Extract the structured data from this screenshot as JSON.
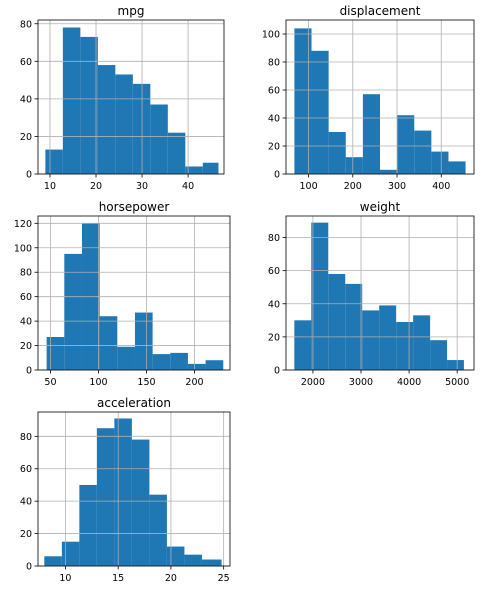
{
  "chart_data": [
    {
      "type": "bar",
      "title": "mpg",
      "xlim": [
        7.4,
        47.8
      ],
      "ylim": [
        0,
        82
      ],
      "xticks": [
        10,
        20,
        30,
        40
      ],
      "yticks": [
        0,
        20,
        40,
        60,
        80
      ],
      "bin_edges": [
        9.0,
        12.8,
        16.6,
        20.4,
        24.2,
        28.0,
        31.8,
        35.6,
        39.4,
        43.2,
        46.6
      ],
      "values": [
        13,
        78,
        73,
        58,
        53,
        48,
        37,
        22,
        4,
        6
      ]
    },
    {
      "type": "bar",
      "title": "displacement",
      "xlim": [
        49,
        474
      ],
      "ylim": [
        0,
        110
      ],
      "xticks": [
        100,
        200,
        300,
        400
      ],
      "yticks": [
        0,
        20,
        40,
        60,
        80,
        100
      ],
      "bin_edges": [
        68,
        106.7,
        145.4,
        184.1,
        222.8,
        261.5,
        300.2,
        338.9,
        377.6,
        416.3,
        455
      ],
      "values": [
        104,
        88,
        30,
        12,
        57,
        3,
        42,
        31,
        16,
        9
      ]
    },
    {
      "type": "bar",
      "title": "horsepower",
      "xlim": [
        37,
        237
      ],
      "ylim": [
        0,
        126
      ],
      "xticks": [
        50,
        100,
        150,
        200
      ],
      "yticks": [
        0,
        20,
        40,
        60,
        80,
        100,
        120
      ],
      "bin_edges": [
        46,
        64.4,
        82.8,
        101.2,
        119.6,
        138.0,
        156.4,
        174.8,
        193.2,
        211.6,
        230
      ],
      "values": [
        27,
        95,
        120,
        44,
        19,
        47,
        13,
        14,
        5,
        8
      ]
    },
    {
      "type": "bar",
      "title": "weight",
      "xlim": [
        1440,
        5350
      ],
      "ylim": [
        0,
        93
      ],
      "xticks": [
        2000,
        3000,
        4000,
        5000
      ],
      "yticks": [
        0,
        20,
        40,
        60,
        80
      ],
      "bin_edges": [
        1613,
        1966,
        2319,
        2672,
        3025,
        3378,
        3731,
        4084,
        4437,
        4790,
        5140
      ],
      "values": [
        30,
        89,
        58,
        52,
        36,
        39,
        29,
        33,
        18,
        6
      ]
    },
    {
      "type": "bar",
      "title": "acceleration",
      "xlim": [
        7.4,
        25.6
      ],
      "ylim": [
        0,
        95
      ],
      "xticks": [
        10,
        15,
        20,
        25
      ],
      "yticks": [
        0,
        20,
        40,
        60,
        80
      ],
      "bin_edges": [
        8.0,
        9.66,
        11.32,
        12.98,
        14.64,
        16.3,
        17.96,
        19.62,
        21.28,
        22.94,
        24.8
      ],
      "values": [
        6,
        15,
        50,
        85,
        91,
        78,
        44,
        12,
        7,
        4
      ]
    }
  ],
  "colors": {
    "bar": "#1f77b4",
    "grid": "#b0b0b0",
    "axis": "#000000",
    "background": "#ffffff"
  },
  "grid": true
}
